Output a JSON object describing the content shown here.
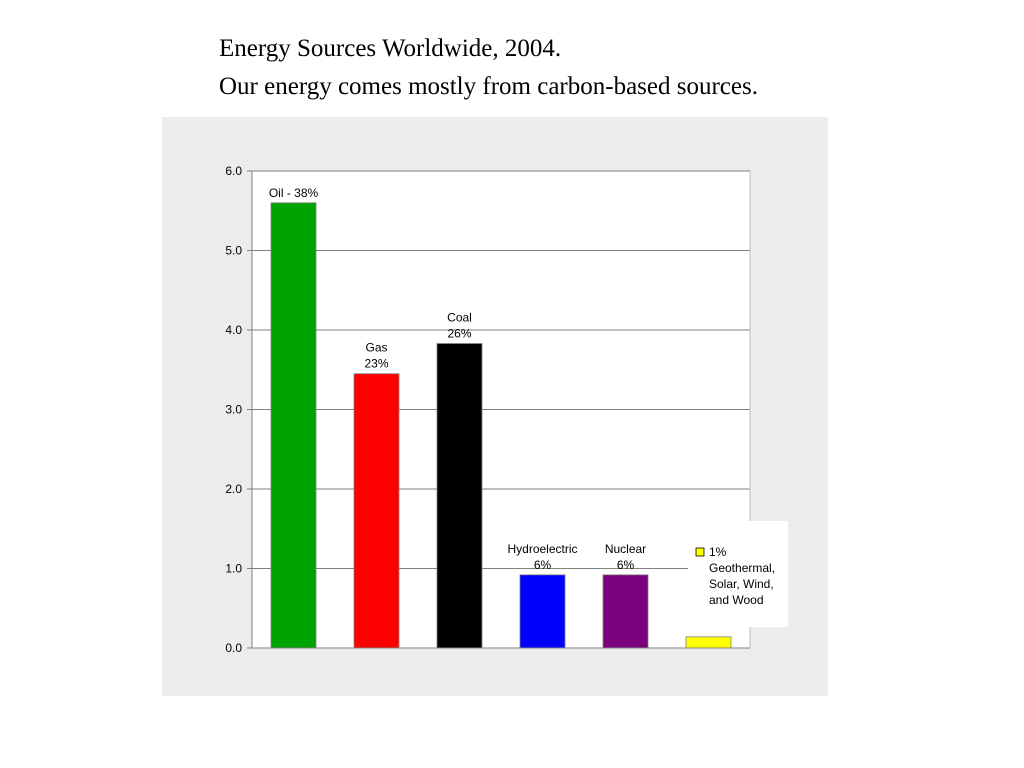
{
  "title": {
    "line1": "Energy Sources Worldwide, 2004.",
    "line2": "Our energy comes mostly from carbon-based sources."
  },
  "chart_data": {
    "type": "bar",
    "categories": [
      "Oil",
      "Gas",
      "Coal",
      "Hydroelectric",
      "Nuclear",
      "Geothermal, Solar, Wind, and Wood"
    ],
    "values": [
      5.6,
      3.45,
      3.83,
      0.92,
      0.92,
      0.14
    ],
    "colors": [
      "#00a400",
      "#ff0000",
      "#000000",
      "#0000ff",
      "#7b007b",
      "#ffff00"
    ],
    "data_labels": [
      [
        "Oil - 38%"
      ],
      [
        "Gas",
        "23%"
      ],
      [
        "Coal",
        "26%"
      ],
      [
        "Hydroelectric",
        "6%"
      ],
      [
        "Nuclear",
        "6%"
      ],
      [
        "1%",
        "Geothermal,",
        "Solar, Wind,",
        "and Wood"
      ]
    ],
    "yticks": [
      "0.0",
      "1.0",
      "2.0",
      "3.0",
      "4.0",
      "5.0",
      "6.0"
    ],
    "ylim": [
      0,
      6
    ],
    "grid": true,
    "legend_marker_color": "#ffff00",
    "plot_background": "#ffffff",
    "panel_background": "#ececec",
    "gridline_color": "#808080"
  }
}
